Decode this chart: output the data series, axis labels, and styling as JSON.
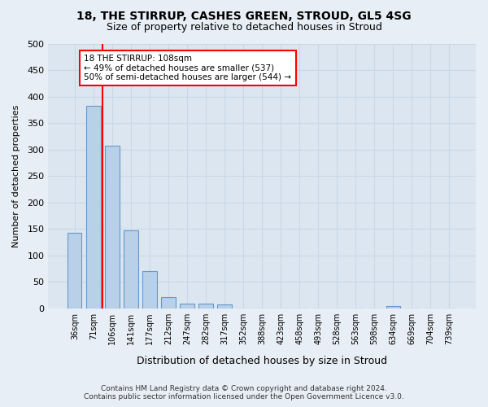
{
  "title1": "18, THE STIRRUP, CASHES GREEN, STROUD, GL5 4SG",
  "title2": "Size of property relative to detached houses in Stroud",
  "xlabel": "Distribution of detached houses by size in Stroud",
  "ylabel": "Number of detached properties",
  "footer1": "Contains HM Land Registry data © Crown copyright and database right 2024.",
  "footer2": "Contains public sector information licensed under the Open Government Licence v3.0.",
  "bin_labels": [
    "36sqm",
    "71sqm",
    "106sqm",
    "141sqm",
    "177sqm",
    "212sqm",
    "247sqm",
    "282sqm",
    "317sqm",
    "352sqm",
    "388sqm",
    "423sqm",
    "458sqm",
    "493sqm",
    "528sqm",
    "563sqm",
    "598sqm",
    "634sqm",
    "669sqm",
    "704sqm",
    "739sqm"
  ],
  "bar_values": [
    143,
    383,
    307,
    148,
    70,
    22,
    9,
    9,
    7,
    0,
    0,
    0,
    0,
    0,
    0,
    0,
    0,
    5,
    0,
    0,
    0
  ],
  "bar_color": "#b8d0e8",
  "bar_edge_color": "#6699cc",
  "annotation_title": "18 THE STIRRUP: 108sqm",
  "annotation_line1": "← 49% of detached houses are smaller (537)",
  "annotation_line2": "50% of semi-detached houses are larger (544) →",
  "red_line_bin": 2,
  "ylim": [
    0,
    500
  ],
  "yticks": [
    0,
    50,
    100,
    150,
    200,
    250,
    300,
    350,
    400,
    450,
    500
  ],
  "bg_color": "#e8eef5",
  "plot_bg_color": "#dce6f0",
  "grid_color": "#c8d8e8"
}
